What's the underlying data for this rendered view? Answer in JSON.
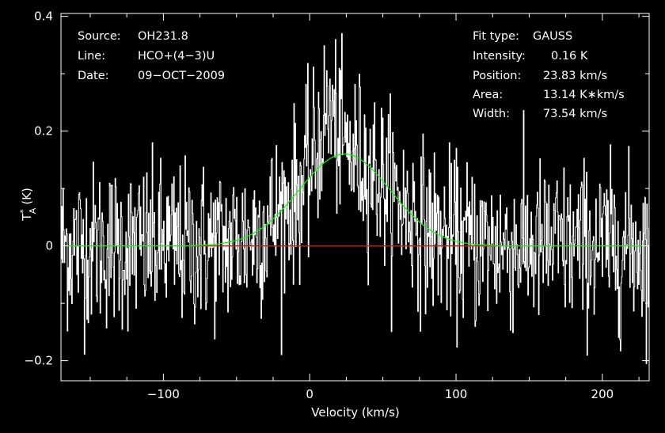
{
  "header": {
    "source_label": "Source:",
    "source_value": "OH231.8",
    "line_label": "Line:",
    "line_value": "HCO+(4−3)U",
    "date_label": "Date:",
    "date_value": "09−OCT−2009"
  },
  "fit": {
    "type_label": "Fit type:",
    "type_value": "GAUSS",
    "intensity_label": "Intensity:",
    "intensity_value": "0.16 K",
    "position_label": "Position:",
    "position_value": "23.83 km/s",
    "area_label": "Area:",
    "area_value": "13.14 K∗km/s",
    "width_label": "Width:",
    "width_value": "73.54 km/s"
  },
  "colors": {
    "background": "#000000",
    "spectrum": "#ffffff",
    "fit_curve": "#00ff00",
    "fit_baseline": "#ff0000",
    "axes": "#ffffff"
  },
  "chart_data": {
    "type": "line",
    "title": "",
    "xlabel": "Velocity (km/s)",
    "ylabel_main": "T",
    "ylabel_sup": "*",
    "ylabel_sub": "A",
    "ylabel_unit": "(K)",
    "xlim": [
      -170,
      232
    ],
    "ylim": [
      -0.235,
      0.405
    ],
    "x_ticks": [
      -100,
      0,
      100,
      200
    ],
    "x_tick_labels": [
      "−100",
      "0",
      "100",
      "200"
    ],
    "y_ticks": [
      -0.2,
      0,
      0.2,
      0.4
    ],
    "y_tick_labels": [
      "−0.2",
      "0",
      "0.2",
      "0.4"
    ],
    "grid": false,
    "spectrum": {
      "description_free": true,
      "x_start": -170,
      "x_end": 232,
      "channel_width": 0.43,
      "noise_rms": 0.072,
      "peak": 0.37,
      "peak_x": 12
    },
    "gaussian_fit": {
      "amplitude": 0.16,
      "center": 23.83,
      "fwhm": 73.54,
      "x_range": [
        -80,
        128
      ]
    },
    "zero_line": {
      "y": 0,
      "x_range": [
        -80,
        128
      ]
    }
  }
}
